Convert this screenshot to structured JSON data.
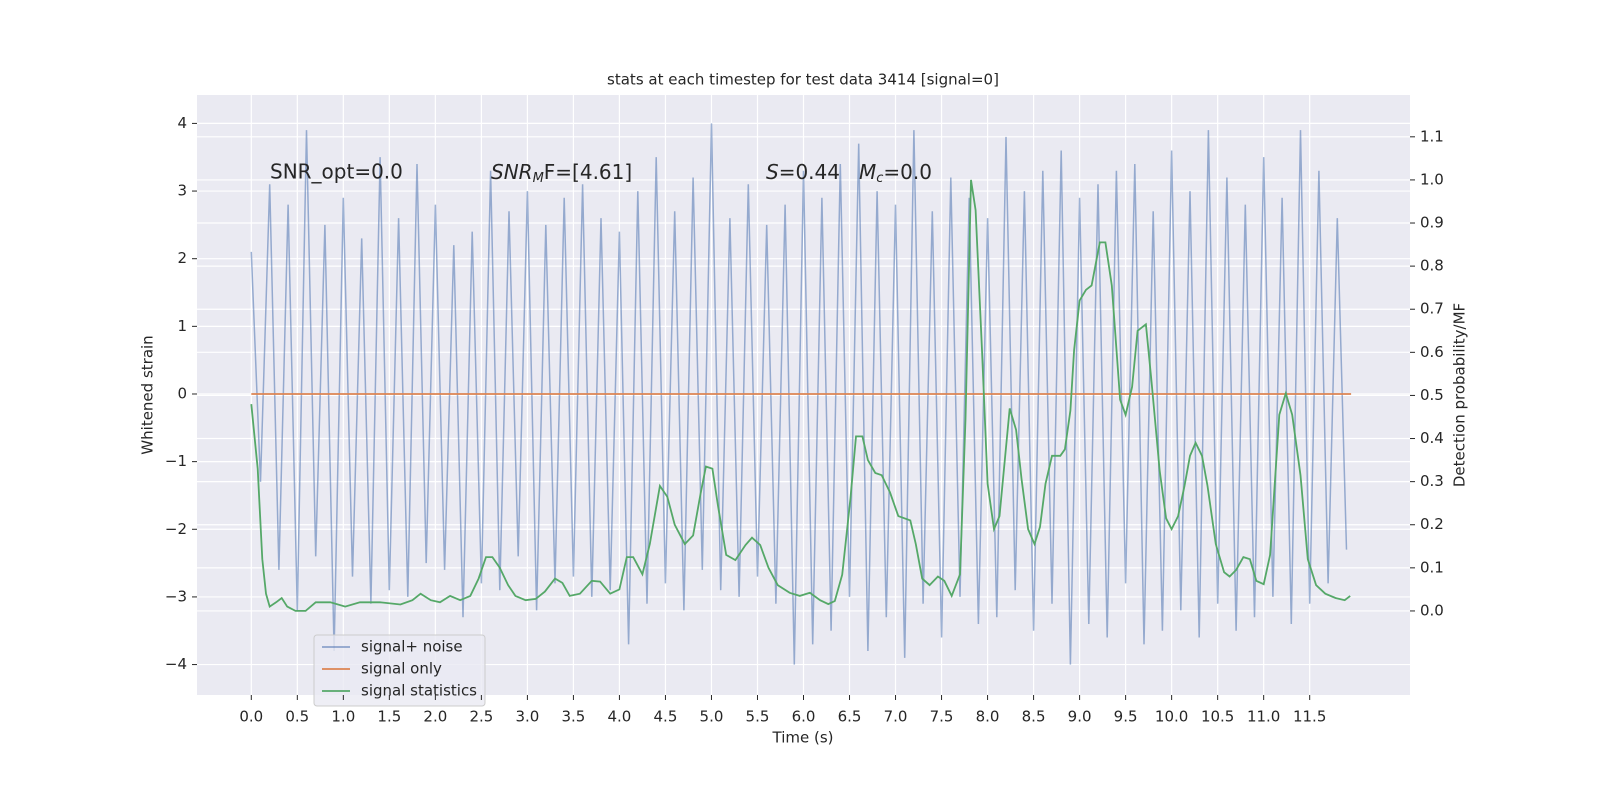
{
  "chart_data": {
    "type": "line",
    "title": "stats at each timestep for test data 3414 [signal=0]",
    "xlabel": "Time (s)",
    "ylabel": "Whitened strain",
    "y2label": "Detection probability/MF",
    "annotations": [
      "SNR_opt=0.0",
      "SNR",
      "M",
      "F=[4.61]",
      "S",
      "=0.44",
      "M",
      "c",
      "=0.0"
    ],
    "xlim": [
      -0.59,
      12.59
    ],
    "ylim": [
      -4.45,
      4.42
    ],
    "y2lim": [
      -0.195,
      1.197
    ],
    "xticks": [
      {
        "value": 0,
        "label": "0.0"
      },
      0.5,
      {
        "value": 1,
        "label": "1.0"
      },
      1.5,
      {
        "value": 2,
        "label": "2.0"
      },
      2.5,
      {
        "value": 3,
        "label": "3.0"
      },
      3.5,
      {
        "value": 4,
        "label": "4.0"
      },
      4.5,
      {
        "value": 5,
        "label": "5.0"
      },
      5.5,
      {
        "value": 6,
        "label": "6.0"
      },
      6.5,
      {
        "value": 7,
        "label": "7.0"
      },
      7.5,
      {
        "value": 8,
        "label": "8.0"
      },
      8.5,
      {
        "value": 9,
        "label": "9.0"
      },
      9.5,
      {
        "value": 10,
        "label": "10.0"
      },
      10.5,
      {
        "value": 11,
        "label": "11.0"
      },
      11.5
    ],
    "yticks": [
      {
        "value": -4,
        "label": "−4"
      },
      {
        "value": -3,
        "label": "−3"
      },
      {
        "value": -2,
        "label": "−2"
      },
      {
        "value": -1,
        "label": "−1"
      },
      0,
      1,
      2,
      3,
      4
    ],
    "y2ticks": [
      {
        "value": 0,
        "label": "0.0"
      },
      0.1,
      0.2,
      0.3,
      0.4,
      0.5,
      0.6,
      0.7,
      0.8,
      0.9,
      {
        "value": 1,
        "label": "1.0"
      },
      1.1
    ],
    "grid": true,
    "legend": "lower left",
    "series": [
      {
        "name": "signal+ noise",
        "color": "#4c72b0",
        "x": [
          0,
          0.1,
          0.2,
          0.3,
          0.4,
          0.5,
          0.6,
          0.7,
          0.8,
          0.9,
          1,
          1.1,
          1.2,
          1.3,
          1.4,
          1.5,
          1.6,
          1.7,
          1.8,
          1.9,
          2,
          2.1,
          2.2,
          2.3,
          2.4,
          2.5,
          2.6,
          2.7,
          2.8,
          2.9,
          3,
          3.1,
          3.2,
          3.3,
          3.4,
          3.5,
          3.6,
          3.7,
          3.8,
          3.9,
          4,
          4.1,
          4.2,
          4.3,
          4.4,
          4.5,
          4.6,
          4.7,
          4.8,
          4.9,
          5,
          5.1,
          5.2,
          5.3,
          5.4,
          5.5,
          5.6,
          5.7,
          5.8,
          5.9,
          6,
          6.1,
          6.2,
          6.3,
          6.4,
          6.5,
          6.6,
          6.7,
          6.8,
          6.9,
          7,
          7.1,
          7.2,
          7.3,
          7.4,
          7.5,
          7.6,
          7.7,
          7.8,
          7.9,
          8,
          8.1,
          8.2,
          8.3,
          8.4,
          8.5,
          8.6,
          8.7,
          8.8,
          8.9,
          9,
          9.1,
          9.2,
          9.3,
          9.4,
          9.5,
          9.6,
          9.7,
          9.8,
          9.9,
          10,
          10.1,
          10.2,
          10.3,
          10.4,
          10.5,
          10.6,
          10.7,
          10.8,
          10.9,
          11,
          11.1,
          11.2,
          11.3,
          11.4,
          11.5,
          11.6,
          11.7,
          11.8,
          11.9
        ],
        "values": [
          2.1,
          -1.3,
          3.1,
          -2.6,
          2.8,
          -3.2,
          3.9,
          -2.4,
          2.5,
          -3.8,
          2.9,
          -2.7,
          2.3,
          -3.1,
          3.5,
          -2.9,
          2.6,
          -3.0,
          3.4,
          -2.5,
          2.8,
          -2.6,
          2.2,
          -3.3,
          2.4,
          -2.8,
          3.3,
          -2.9,
          2.7,
          -2.4,
          3.0,
          -3.2,
          2.5,
          -2.8,
          2.9,
          -2.7,
          3.1,
          -3.0,
          2.6,
          -2.9,
          2.4,
          -3.7,
          3.0,
          -3.1,
          3.5,
          -2.8,
          2.7,
          -3.2,
          3.2,
          -2.6,
          4.0,
          -2.9,
          2.6,
          -3.0,
          3.1,
          -2.7,
          2.5,
          -3.1,
          2.8,
          -4.0,
          3.3,
          -3.7,
          2.9,
          -3.5,
          3.4,
          -3.0,
          3.7,
          -3.8,
          3.0,
          -3.3,
          2.8,
          -3.9,
          3.9,
          -3.1,
          2.7,
          -3.6,
          3.2,
          -3.0,
          2.9,
          -3.4,
          2.6,
          -3.3,
          3.8,
          -2.9,
          3.0,
          -3.5,
          3.3,
          -3.1,
          3.6,
          -4.0,
          2.9,
          -3.4,
          3.1,
          -3.6,
          3.3,
          -2.8,
          3.4,
          -3.7,
          2.7,
          -3.5,
          3.6,
          -3.2,
          3.0,
          -3.6,
          3.9,
          -3.1,
          3.2,
          -3.5,
          2.8,
          -3.3,
          3.5,
          -3.0,
          2.9,
          -3.4,
          3.9,
          -3.1,
          3.3,
          -2.8,
          2.6,
          -2.3
        ]
      },
      {
        "name": "signal only",
        "color": "#dd8452",
        "x": [
          0,
          11.95
        ],
        "values": [
          0,
          0
        ]
      },
      {
        "name": "signal statistics",
        "color": "#55a868",
        "axis": "y2",
        "x": [
          0,
          0.07,
          0.12,
          0.16,
          0.2,
          0.27,
          0.33,
          0.39,
          0.48,
          0.59,
          0.7,
          0.86,
          1.02,
          1.18,
          1.4,
          1.62,
          1.75,
          1.84,
          1.95,
          2.05,
          2.16,
          2.27,
          2.38,
          2.47,
          2.55,
          2.62,
          2.7,
          2.79,
          2.87,
          2.98,
          3.09,
          3.19,
          3.3,
          3.38,
          3.46,
          3.57,
          3.7,
          3.79,
          3.9,
          4.0,
          4.08,
          4.15,
          4.25,
          4.33,
          4.44,
          4.52,
          4.6,
          4.71,
          4.8,
          4.88,
          4.94,
          5.01,
          5.07,
          5.16,
          5.26,
          5.37,
          5.44,
          5.53,
          5.62,
          5.72,
          5.85,
          5.96,
          6.07,
          6.18,
          6.27,
          6.34,
          6.42,
          6.51,
          6.57,
          6.64,
          6.7,
          6.78,
          6.85,
          6.94,
          7.03,
          7.16,
          7.22,
          7.29,
          7.37,
          7.46,
          7.53,
          7.61,
          7.7,
          7.76,
          7.82,
          7.87,
          7.94,
          8.0,
          8.07,
          8.13,
          8.24,
          8.31,
          8.37,
          8.44,
          8.51,
          8.57,
          8.63,
          8.7,
          8.79,
          8.84,
          8.9,
          8.94,
          9.0,
          9.07,
          9.13,
          9.22,
          9.28,
          9.35,
          9.44,
          9.5,
          9.57,
          9.63,
          9.72,
          9.78,
          9.87,
          9.94,
          10.0,
          10.07,
          10.14,
          10.2,
          10.26,
          10.33,
          10.39,
          10.48,
          10.57,
          10.63,
          10.7,
          10.78,
          10.85,
          10.92,
          11.0,
          11.07,
          11.17,
          11.24,
          11.31,
          11.4,
          11.48,
          11.57,
          11.67,
          11.78,
          11.88,
          11.94
        ],
        "values": [
          0.48,
          0.33,
          0.12,
          0.04,
          0.01,
          0.02,
          0.03,
          0.01,
          0.0,
          0.0,
          0.02,
          0.02,
          0.01,
          0.02,
          0.02,
          0.015,
          0.025,
          0.04,
          0.025,
          0.02,
          0.035,
          0.025,
          0.035,
          0.075,
          0.125,
          0.125,
          0.1,
          0.06,
          0.035,
          0.025,
          0.028,
          0.045,
          0.075,
          0.065,
          0.035,
          0.04,
          0.07,
          0.068,
          0.04,
          0.05,
          0.125,
          0.125,
          0.085,
          0.155,
          0.29,
          0.265,
          0.2,
          0.155,
          0.175,
          0.27,
          0.335,
          0.33,
          0.245,
          0.13,
          0.118,
          0.153,
          0.17,
          0.153,
          0.1,
          0.06,
          0.042,
          0.035,
          0.042,
          0.025,
          0.016,
          0.023,
          0.084,
          0.26,
          0.405,
          0.405,
          0.35,
          0.32,
          0.315,
          0.275,
          0.22,
          0.21,
          0.155,
          0.075,
          0.06,
          0.08,
          0.07,
          0.035,
          0.085,
          0.445,
          1.0,
          0.93,
          0.605,
          0.295,
          0.19,
          0.22,
          0.47,
          0.42,
          0.305,
          0.19,
          0.155,
          0.195,
          0.295,
          0.36,
          0.36,
          0.375,
          0.465,
          0.605,
          0.72,
          0.745,
          0.755,
          0.855,
          0.855,
          0.755,
          0.49,
          0.455,
          0.52,
          0.65,
          0.665,
          0.535,
          0.325,
          0.215,
          0.19,
          0.22,
          0.29,
          0.36,
          0.39,
          0.36,
          0.29,
          0.155,
          0.09,
          0.08,
          0.095,
          0.125,
          0.12,
          0.07,
          0.062,
          0.13,
          0.455,
          0.505,
          0.455,
          0.315,
          0.12,
          0.06,
          0.04,
          0.03,
          0.025,
          0.035
        ]
      }
    ]
  }
}
